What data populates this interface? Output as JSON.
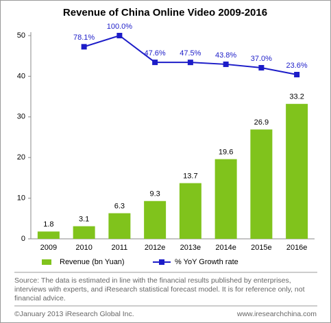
{
  "chart_data": {
    "type": "bar",
    "title": "Revenue of China Online Video 2009-2016",
    "categories": [
      "2009",
      "2010",
      "2011",
      "2012e",
      "2013e",
      "2014e",
      "2015e",
      "2016e"
    ],
    "series": [
      {
        "name": "Revenue (bn Yuan)",
        "type": "bar",
        "color": "#80c31c",
        "values": [
          1.8,
          3.1,
          6.3,
          9.3,
          13.7,
          19.6,
          26.9,
          33.2
        ]
      },
      {
        "name": "% YoY Growth rate",
        "type": "line",
        "color": "#1c1cc8",
        "axis": "y2",
        "values": [
          null,
          78.1,
          100.0,
          47.6,
          47.5,
          43.8,
          37.0,
          23.6
        ],
        "value_labels": [
          null,
          "78.1%",
          "100.0%",
          "47.6%",
          "47.5%",
          "43.8%",
          "37.0%",
          "23.6%"
        ]
      }
    ],
    "ylim": [
      0,
      50
    ],
    "yticks": [
      0,
      10,
      20,
      30,
      40,
      50
    ],
    "y2lim": [
      -298,
      100
    ],
    "grid": false,
    "source": "Source: The data is estimated in line with the financial results published by enterprises, interviews with experts, and iResearch statistical forecast model. It is for reference only, not financial advice.",
    "footer_left": "©January 2013 iResearch Global Inc.",
    "footer_right": "www.iresearchchina.com"
  }
}
